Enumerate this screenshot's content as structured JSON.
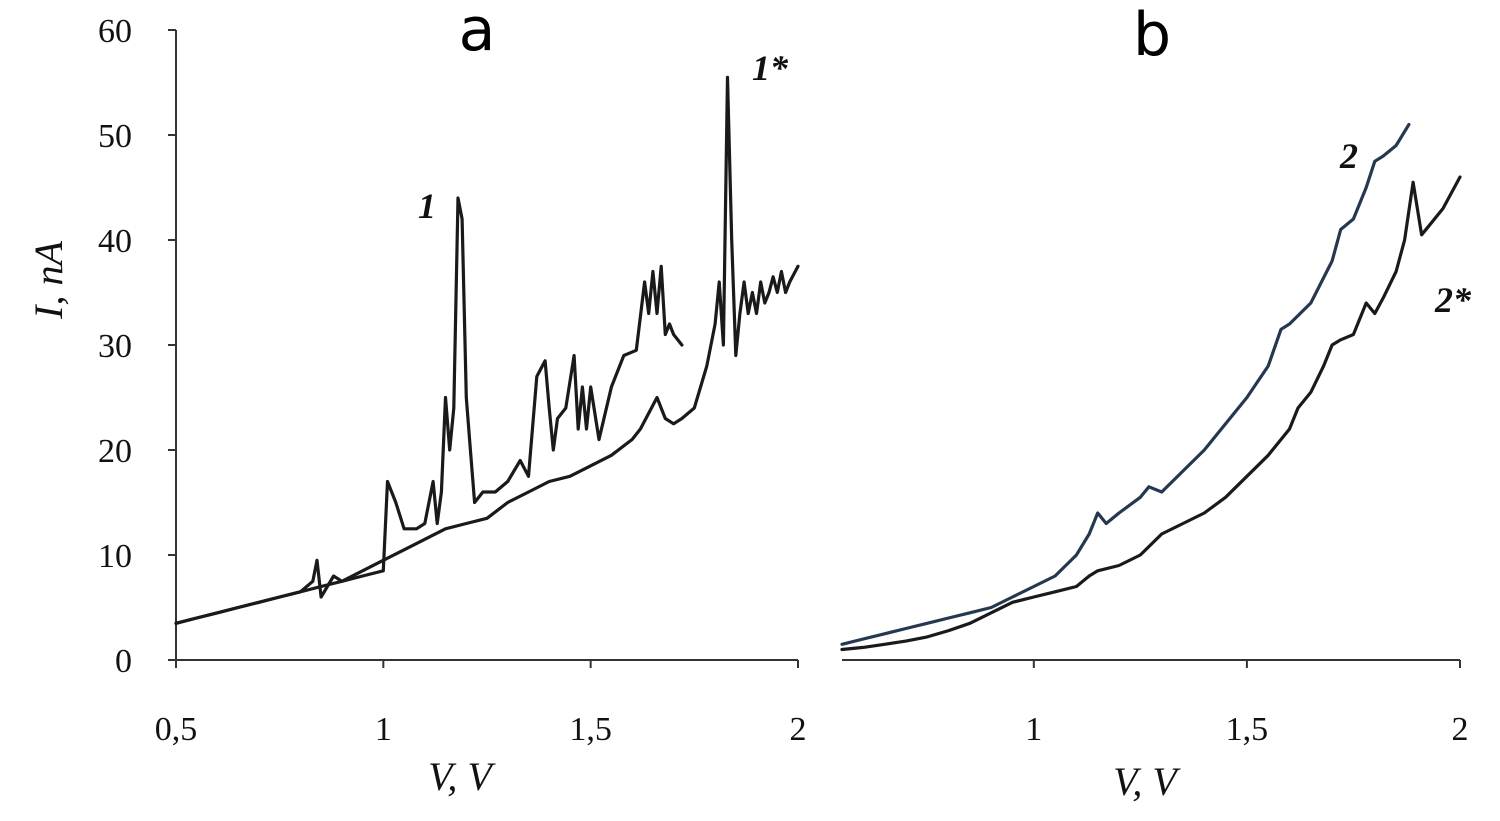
{
  "chart_data": [
    {
      "type": "line",
      "panel_label": "a",
      "xlabel": "V, V",
      "ylabel": "I, nA",
      "xlim": [
        0.5,
        2.0
      ],
      "ylim": [
        0,
        60
      ],
      "x_ticks": [
        "0,5",
        "1",
        "1,5",
        "2"
      ],
      "y_ticks": [
        "0",
        "10",
        "20",
        "30",
        "40",
        "50",
        "60"
      ],
      "grid": false,
      "series": [
        {
          "name": "1",
          "color": "#1a1a1a",
          "x": [
            0.5,
            0.55,
            0.6,
            0.65,
            0.7,
            0.75,
            0.8,
            0.83,
            0.84,
            0.85,
            0.88,
            0.9,
            0.95,
            1.0,
            1.01,
            1.03,
            1.05,
            1.08,
            1.1,
            1.12,
            1.13,
            1.14,
            1.15,
            1.16,
            1.17,
            1.18,
            1.19,
            1.2,
            1.21,
            1.22,
            1.24,
            1.27,
            1.3,
            1.33,
            1.35,
            1.37,
            1.39,
            1.4,
            1.41,
            1.42,
            1.44,
            1.46,
            1.47,
            1.48,
            1.49,
            1.5,
            1.52,
            1.55,
            1.58,
            1.61,
            1.63,
            1.64,
            1.65,
            1.66,
            1.67,
            1.68,
            1.69,
            1.7,
            1.72
          ],
          "y": [
            3.5,
            4.0,
            4.5,
            5.0,
            5.5,
            6.0,
            6.5,
            7.5,
            9.5,
            6.0,
            8.0,
            7.5,
            8.0,
            8.5,
            17.0,
            15.0,
            12.5,
            12.5,
            13.0,
            17.0,
            13.0,
            16.0,
            25.0,
            20.0,
            24.0,
            44.0,
            42.0,
            25.0,
            20.0,
            15.0,
            16.0,
            16.0,
            17.0,
            19.0,
            17.5,
            27.0,
            28.5,
            24.0,
            20.0,
            23.0,
            24.0,
            29.0,
            22.0,
            26.0,
            22.0,
            26.0,
            21.0,
            26.0,
            29.0,
            29.5,
            36.0,
            33.0,
            37.0,
            33.0,
            37.5,
            31.0,
            32.0,
            31.0,
            30.0
          ]
        },
        {
          "name": "1*",
          "color": "#1a1a1a",
          "x": [
            0.5,
            0.55,
            0.6,
            0.65,
            0.7,
            0.75,
            0.8,
            0.85,
            0.9,
            0.95,
            1.0,
            1.05,
            1.1,
            1.15,
            1.2,
            1.25,
            1.3,
            1.35,
            1.4,
            1.45,
            1.5,
            1.55,
            1.6,
            1.62,
            1.64,
            1.66,
            1.68,
            1.7,
            1.72,
            1.75,
            1.78,
            1.8,
            1.81,
            1.82,
            1.83,
            1.84,
            1.85,
            1.86,
            1.87,
            1.88,
            1.89,
            1.9,
            1.91,
            1.92,
            1.93,
            1.94,
            1.95,
            1.96,
            1.97,
            1.98,
            2.0
          ],
          "y": [
            3.5,
            4.0,
            4.5,
            5.0,
            5.5,
            6.0,
            6.5,
            7.0,
            7.5,
            8.5,
            9.5,
            10.5,
            11.5,
            12.5,
            13.0,
            13.5,
            15.0,
            16.0,
            17.0,
            17.5,
            18.5,
            19.5,
            21.0,
            22.0,
            23.5,
            25.0,
            23.0,
            22.5,
            23.0,
            24.0,
            28.0,
            32.0,
            36.0,
            30.0,
            55.5,
            40.0,
            29.0,
            33.0,
            36.0,
            33.0,
            35.0,
            33.0,
            36.0,
            34.0,
            35.0,
            36.5,
            35.0,
            37.0,
            35.0,
            36.0,
            37.5
          ]
        }
      ]
    },
    {
      "type": "line",
      "panel_label": "b",
      "xlabel": "V, V",
      "ylabel": "",
      "xlim": [
        0.55,
        2.0
      ],
      "ylim": [
        0,
        60
      ],
      "x_ticks": [
        "1",
        "1,5",
        "2"
      ],
      "y_ticks": [],
      "grid": false,
      "series": [
        {
          "name": "2",
          "color": "#25384f",
          "x": [
            0.55,
            0.6,
            0.65,
            0.7,
            0.75,
            0.8,
            0.85,
            0.9,
            0.95,
            1.0,
            1.05,
            1.1,
            1.13,
            1.15,
            1.17,
            1.2,
            1.25,
            1.27,
            1.3,
            1.35,
            1.4,
            1.45,
            1.5,
            1.55,
            1.58,
            1.6,
            1.65,
            1.7,
            1.72,
            1.75,
            1.78,
            1.8,
            1.82,
            1.85,
            1.88
          ],
          "y": [
            1.5,
            2.0,
            2.5,
            3.0,
            3.5,
            4.0,
            4.5,
            5.0,
            6.0,
            7.0,
            8.0,
            10.0,
            12.0,
            14.0,
            13.0,
            14.0,
            15.5,
            16.5,
            16.0,
            18.0,
            20.0,
            22.5,
            25.0,
            28.0,
            31.5,
            32.0,
            34.0,
            38.0,
            41.0,
            42.0,
            45.0,
            47.5,
            48.0,
            49.0,
            51.0
          ]
        },
        {
          "name": "2*",
          "color": "#1a1a1a",
          "x": [
            0.55,
            0.6,
            0.65,
            0.7,
            0.75,
            0.8,
            0.85,
            0.9,
            0.95,
            1.0,
            1.05,
            1.1,
            1.13,
            1.15,
            1.2,
            1.25,
            1.3,
            1.35,
            1.4,
            1.45,
            1.5,
            1.55,
            1.6,
            1.62,
            1.65,
            1.68,
            1.7,
            1.72,
            1.75,
            1.78,
            1.8,
            1.82,
            1.85,
            1.87,
            1.89,
            1.91,
            1.93,
            1.96,
            2.0
          ],
          "y": [
            1.0,
            1.2,
            1.5,
            1.8,
            2.2,
            2.8,
            3.5,
            4.5,
            5.5,
            6.0,
            6.5,
            7.0,
            8.0,
            8.5,
            9.0,
            10.0,
            12.0,
            13.0,
            14.0,
            15.5,
            17.5,
            19.5,
            22.0,
            24.0,
            25.5,
            28.0,
            30.0,
            30.5,
            31.0,
            34.0,
            33.0,
            34.5,
            37.0,
            40.0,
            45.5,
            40.5,
            41.5,
            43.0,
            46.0
          ]
        }
      ]
    }
  ]
}
